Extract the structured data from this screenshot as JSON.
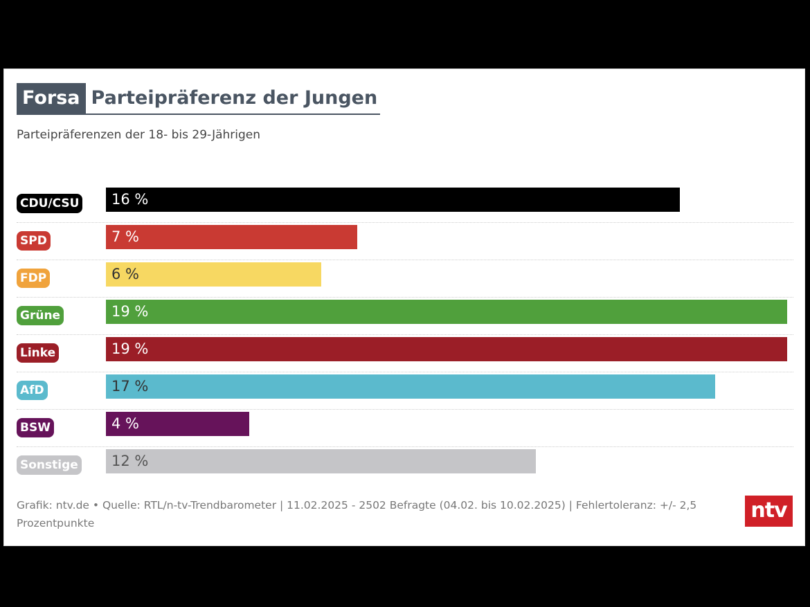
{
  "header": {
    "brand": "Forsa",
    "title": "Parteipräferenz der Jungen",
    "subtitle": "Parteipräferenzen der 18- bis 29-Jährigen"
  },
  "chart_data": {
    "type": "bar",
    "orientation": "horizontal",
    "title": "Parteipräferenz der Jungen",
    "subtitle": "Parteipräferenzen der 18- bis 29-Jährigen",
    "unit": "%",
    "xlim": [
      0,
      19
    ],
    "categories": [
      "CDU/CSU",
      "SPD",
      "FDP",
      "Grüne",
      "Linke",
      "AfD",
      "BSW",
      "Sonstige"
    ],
    "values": [
      16,
      7,
      6,
      19,
      19,
      17,
      4,
      12
    ],
    "value_labels": [
      "16 %",
      "7 %",
      "6 %",
      "19 %",
      "19 %",
      "17 %",
      "4 %",
      "12 %"
    ],
    "colors": [
      "#000000",
      "#c93a33",
      "#f7d862",
      "#50a03c",
      "#9b1e27",
      "#5bbacd",
      "#66135a",
      "#c5c5c8"
    ],
    "label_colors": [
      "#000000",
      "#c93a33",
      "#f0a33c",
      "#50a03c",
      "#9b1e27",
      "#5bbacd",
      "#66135a",
      "#c5c5c8"
    ],
    "value_text_colors": [
      "#ffffff",
      "#ffffff",
      "#333333",
      "#ffffff",
      "#ffffff",
      "#333333",
      "#ffffff",
      "#555555"
    ]
  },
  "footer": {
    "source": "Grafik: ntv.de • Quelle: RTL/n-tv-Trendbarometer | 11.02.2025 - 2502 Befragte (04.02. bis 10.02.2025) | Fehlertoleranz: +/- 2,5 Prozentpunkte",
    "logo": "ntv"
  }
}
